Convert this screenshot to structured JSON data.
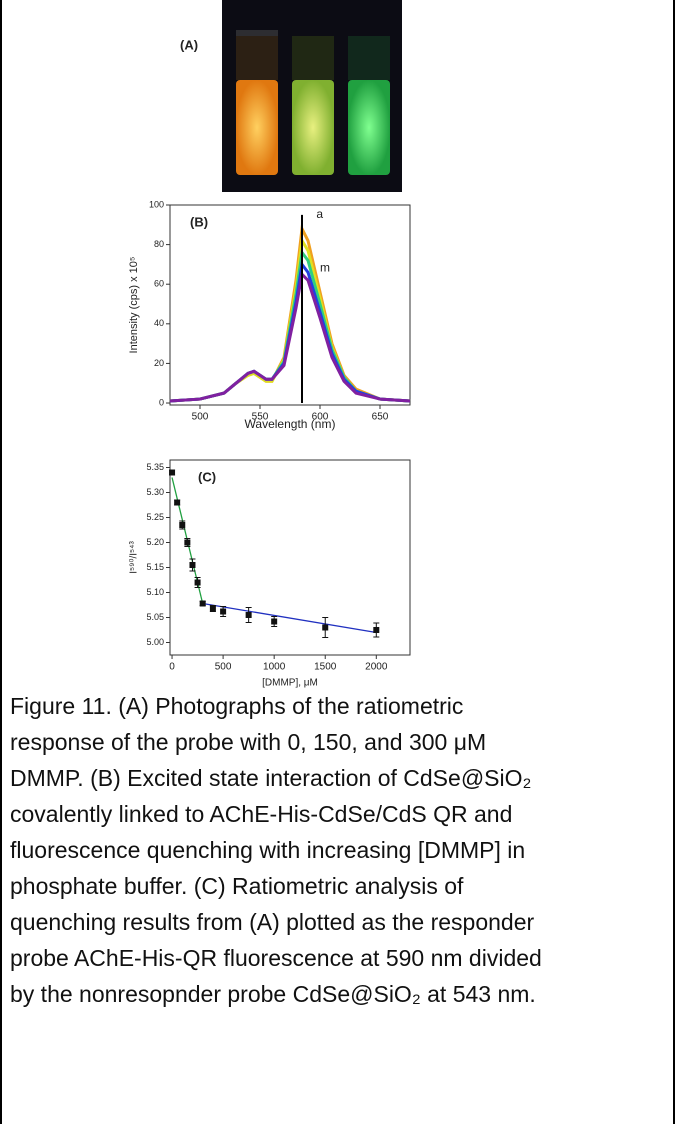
{
  "figure": {
    "photo_label": "(A)"
  },
  "chart_data": [
    {
      "type": "line",
      "panel_label": "(B)",
      "x_label": "Wavelength (nm)",
      "y_label": "Intensity (cps) x 10⁵",
      "x": [
        475,
        500,
        520,
        530,
        540,
        545,
        550,
        555,
        560,
        570,
        580,
        585,
        590,
        600,
        610,
        620,
        630,
        650,
        675
      ],
      "series": [
        {
          "color": "#f0a020",
          "values": [
            1,
            2,
            5,
            10,
            14,
            15,
            13,
            11,
            11,
            23,
            62,
            88,
            82,
            56,
            30,
            14,
            7,
            2,
            1
          ]
        },
        {
          "color": "#e0e020",
          "values": [
            1,
            2,
            5,
            10,
            14,
            15,
            13,
            11,
            11,
            22,
            58,
            82,
            77,
            53,
            28,
            13,
            6,
            2,
            1
          ]
        },
        {
          "color": "#30d080",
          "values": [
            1,
            2,
            5,
            10,
            15,
            16,
            14,
            12,
            12,
            21,
            55,
            76,
            72,
            50,
            27,
            13,
            6,
            2,
            1
          ]
        },
        {
          "color": "#2040e0",
          "values": [
            1,
            2,
            5,
            10,
            15,
            16,
            14,
            12,
            12,
            20,
            51,
            70,
            66,
            46,
            25,
            12,
            6,
            2,
            1
          ]
        },
        {
          "color": "#8020a0",
          "values": [
            1,
            2,
            5,
            10,
            15,
            16,
            14,
            12,
            12,
            19,
            48,
            65,
            62,
            43,
            23,
            11,
            5,
            2,
            1
          ]
        }
      ],
      "marker_line": {
        "x": 585,
        "y": 95
      },
      "annotations": [
        {
          "text": "a",
          "x": 597,
          "y": 95
        },
        {
          "text": "m",
          "x": 600,
          "y": 68
        }
      ],
      "xlim": [
        475,
        675
      ],
      "xticks": [
        500,
        550,
        600,
        650
      ],
      "ylim": [
        -1,
        100
      ],
      "yticks": [
        0,
        20,
        40,
        60,
        80,
        100
      ]
    },
    {
      "type": "scatter",
      "panel_label": "(C)",
      "x_label": "[DMMP], μM",
      "y_label": "I⁵⁹⁰/I⁵⁴³",
      "x": [
        0,
        50,
        100,
        150,
        200,
        250,
        300,
        400,
        500,
        750,
        1000,
        1500,
        2000
      ],
      "values": [
        5.34,
        5.28,
        5.235,
        5.2,
        5.155,
        5.12,
        5.078,
        5.068,
        5.062,
        5.055,
        5.042,
        5.03,
        5.025
      ],
      "errors": [
        0.005,
        0.005,
        0.008,
        0.008,
        0.012,
        0.01,
        0.004,
        0.006,
        0.01,
        0.015,
        0.01,
        0.02,
        0.014
      ],
      "color": "#111111",
      "fit_lines": [
        {
          "color": "#20a040",
          "x": [
            0,
            300
          ],
          "y": [
            5.33,
            5.078
          ]
        },
        {
          "color": "#2030c0",
          "x": [
            300,
            2000
          ],
          "y": [
            5.078,
            5.02
          ]
        }
      ],
      "xlim": [
        -20,
        2330
      ],
      "xticks": [
        0,
        500,
        1000,
        1500,
        2000
      ],
      "ylim": [
        4.975,
        5.365
      ],
      "yticks": [
        {
          "value": 5,
          "label": "5.00"
        },
        5.05,
        {
          "value": 5.1,
          "label": "5.10"
        },
        5.15,
        {
          "value": 5.2,
          "label": "5.20"
        },
        5.25,
        {
          "value": 5.3,
          "label": "5.30"
        },
        5.35
      ]
    }
  ],
  "caption_lines": [
    "Figure 11. (A) Photographs of the ratiometric",
    "response of the probe with 0, 150, and 300 μM",
    "DMMP. (B) Excited state interaction of CdSe@SiO₂",
    "covalently linked to AChE-His-CdSe/CdS QR and",
    "fluorescence quenching with increasing [DMMP] in",
    "phosphate buffer. (C) Ratiometric analysis of",
    "quenching results from (A) plotted as the responder",
    "probe AChE-His-QR fluorescence at 590 nm divided",
    "by the nonresopnder probe CdSe@SiO₂ at 543 nm."
  ]
}
